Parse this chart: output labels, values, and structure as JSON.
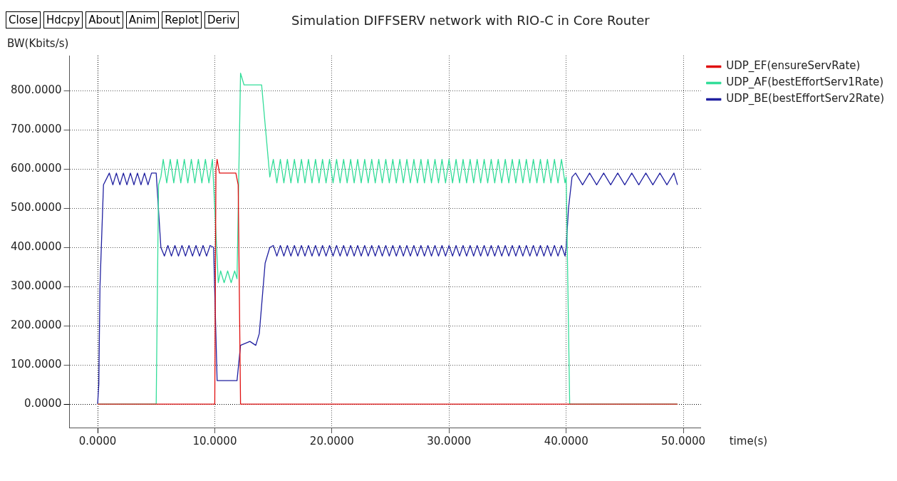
{
  "chart_data": {
    "type": "line",
    "title": "Simulation DIFFSERV network with RIO-C in Core Router",
    "xlabel": "time(s)",
    "ylabel": "BW(Kbits/s)",
    "annotations": [
      "Close",
      "Hdcpy",
      "About",
      "Anim",
      "Replot",
      "Deriv"
    ],
    "xlim": [
      -2.4,
      51.5
    ],
    "ylim": [
      -60,
      890
    ],
    "xticks": [
      {
        "value": 0,
        "label": "0.0000"
      },
      {
        "value": 10,
        "label": "10.0000"
      },
      {
        "value": 20,
        "label": "20.0000"
      },
      {
        "value": 30,
        "label": "30.0000"
      },
      {
        "value": 40,
        "label": "40.0000"
      },
      {
        "value": 50,
        "label": "50.0000"
      }
    ],
    "yticks": [
      {
        "value": 0,
        "label": "0.0000"
      },
      {
        "value": 100,
        "label": "100.0000"
      },
      {
        "value": 200,
        "label": "200.0000"
      },
      {
        "value": 300,
        "label": "300.0000"
      },
      {
        "value": 400,
        "label": "400.0000"
      },
      {
        "value": 500,
        "label": "500.0000"
      },
      {
        "value": 600,
        "label": "600.0000"
      },
      {
        "value": 700,
        "label": "700.0000"
      },
      {
        "value": 800,
        "label": "800.0000"
      }
    ],
    "grid": true,
    "legend": "top right",
    "marker": "none",
    "line_style": "solid",
    "series": [
      {
        "name": "UDP_EF(ensureServRate)",
        "color": "#e01010",
        "x": [
          0,
          10.0,
          10.1,
          10.2,
          10.4,
          11.8,
          12.0,
          12.2,
          49.5
        ],
        "values": [
          0,
          0,
          600,
          625,
          590,
          590,
          560,
          0,
          0
        ]
      },
      {
        "name": "UDP_AF(bestEffortServ1Rate)",
        "color": "#33dd99",
        "x": [
          0,
          5.0,
          5.2,
          5.4,
          5.6,
          5.9,
          6.2,
          6.5,
          6.8,
          7.1,
          7.4,
          7.7,
          8.0,
          8.3,
          8.6,
          8.9,
          9.2,
          9.5,
          9.8,
          10.3,
          10.5,
          10.8,
          11.1,
          11.4,
          11.7,
          11.9,
          12.2,
          12.5,
          14.0,
          14.7,
          15.0,
          15.3,
          15.6,
          15.9,
          16.2,
          16.5,
          16.8,
          17.1,
          17.4,
          17.7,
          18.0,
          18.3,
          18.6,
          18.9,
          19.2,
          19.5,
          19.8,
          20.1,
          20.4,
          20.7,
          21.0,
          21.3,
          21.6,
          21.9,
          22.2,
          22.5,
          22.8,
          23.1,
          23.4,
          23.7,
          24.0,
          24.3,
          24.6,
          24.9,
          25.2,
          25.5,
          25.8,
          26.1,
          26.4,
          26.7,
          27.0,
          27.3,
          27.6,
          27.9,
          28.2,
          28.5,
          28.8,
          29.1,
          29.4,
          29.7,
          30.0,
          30.3,
          30.6,
          30.9,
          31.2,
          31.5,
          31.8,
          32.1,
          32.4,
          32.7,
          33.0,
          33.3,
          33.6,
          33.9,
          34.2,
          34.5,
          34.8,
          35.1,
          35.4,
          35.7,
          36.0,
          36.3,
          36.6,
          36.9,
          37.2,
          37.5,
          37.8,
          38.1,
          38.4,
          38.7,
          39.0,
          39.3,
          39.6,
          39.9,
          40.0,
          40.3,
          49.5
        ],
        "values": [
          0,
          0,
          560,
          580,
          625,
          565,
          625,
          565,
          625,
          565,
          625,
          565,
          625,
          565,
          625,
          565,
          625,
          565,
          625,
          310,
          340,
          310,
          340,
          310,
          340,
          320,
          845,
          815,
          815,
          580,
          625,
          565,
          625,
          565,
          625,
          565,
          625,
          565,
          625,
          565,
          625,
          565,
          625,
          565,
          625,
          565,
          625,
          565,
          625,
          565,
          625,
          565,
          625,
          565,
          625,
          565,
          625,
          565,
          625,
          565,
          625,
          565,
          625,
          565,
          625,
          565,
          625,
          565,
          625,
          565,
          625,
          565,
          625,
          565,
          625,
          565,
          625,
          565,
          625,
          565,
          625,
          565,
          625,
          565,
          625,
          565,
          625,
          565,
          625,
          565,
          625,
          565,
          625,
          565,
          625,
          565,
          625,
          565,
          625,
          565,
          625,
          565,
          625,
          565,
          625,
          565,
          625,
          565,
          625,
          565,
          625,
          565,
          625,
          565,
          580,
          0,
          0
        ]
      },
      {
        "name": "UDP_BE(bestEffortServ2Rate)",
        "color": "#2020a0",
        "x": [
          0,
          0.1,
          0.2,
          0.5,
          1.0,
          1.3,
          1.6,
          1.9,
          2.2,
          2.5,
          2.8,
          3.1,
          3.4,
          3.7,
          4.0,
          4.3,
          4.6,
          5.0,
          5.4,
          5.7,
          6.0,
          6.3,
          6.6,
          6.9,
          7.2,
          7.5,
          7.8,
          8.1,
          8.4,
          8.7,
          9.0,
          9.3,
          9.6,
          9.9,
          10.2,
          11.9,
          12.2,
          13.0,
          13.5,
          13.8,
          14.3,
          14.7,
          15.0,
          15.3,
          15.6,
          15.9,
          16.2,
          16.5,
          16.8,
          17.1,
          17.4,
          17.7,
          18.0,
          18.3,
          18.6,
          18.9,
          19.2,
          19.5,
          19.8,
          20.1,
          20.4,
          20.7,
          21.0,
          21.3,
          21.6,
          21.9,
          22.2,
          22.5,
          22.8,
          23.1,
          23.4,
          23.7,
          24.0,
          24.3,
          24.6,
          24.9,
          25.2,
          25.5,
          25.8,
          26.1,
          26.4,
          26.7,
          27.0,
          27.3,
          27.6,
          27.9,
          28.2,
          28.5,
          28.8,
          29.1,
          29.4,
          29.7,
          30.0,
          30.3,
          30.6,
          30.9,
          31.2,
          31.5,
          31.8,
          32.1,
          32.4,
          32.7,
          33.0,
          33.3,
          33.6,
          33.9,
          34.2,
          34.5,
          34.8,
          35.1,
          35.4,
          35.7,
          36.0,
          36.3,
          36.6,
          36.9,
          37.2,
          37.5,
          37.8,
          38.1,
          38.4,
          38.7,
          39.0,
          39.3,
          39.6,
          39.9,
          40.0,
          40.2,
          40.5,
          40.8,
          41.4,
          42.0,
          42.6,
          43.2,
          43.8,
          44.4,
          45.0,
          45.6,
          46.2,
          46.8,
          47.4,
          48.0,
          48.6,
          49.2,
          49.5
        ],
        "values": [
          0,
          50,
          300,
          560,
          590,
          560,
          590,
          560,
          590,
          560,
          590,
          560,
          590,
          560,
          590,
          560,
          590,
          590,
          400,
          378,
          405,
          378,
          405,
          378,
          405,
          378,
          405,
          378,
          405,
          378,
          405,
          378,
          405,
          400,
          60,
          60,
          150,
          160,
          150,
          180,
          360,
          400,
          405,
          378,
          405,
          378,
          405,
          378,
          405,
          378,
          405,
          378,
          405,
          378,
          405,
          378,
          405,
          378,
          405,
          378,
          405,
          378,
          405,
          378,
          405,
          378,
          405,
          378,
          405,
          378,
          405,
          378,
          405,
          378,
          405,
          378,
          405,
          378,
          405,
          378,
          405,
          378,
          405,
          378,
          405,
          378,
          405,
          378,
          405,
          378,
          405,
          378,
          405,
          378,
          405,
          378,
          405,
          378,
          405,
          378,
          405,
          378,
          405,
          378,
          405,
          378,
          405,
          378,
          405,
          378,
          405,
          378,
          405,
          378,
          405,
          378,
          405,
          378,
          405,
          378,
          405,
          378,
          405,
          378,
          405,
          378,
          400,
          500,
          580,
          590,
          560,
          590,
          560,
          590,
          560,
          590,
          560,
          590,
          560,
          590,
          560,
          590,
          560,
          590,
          560
        ]
      }
    ]
  }
}
